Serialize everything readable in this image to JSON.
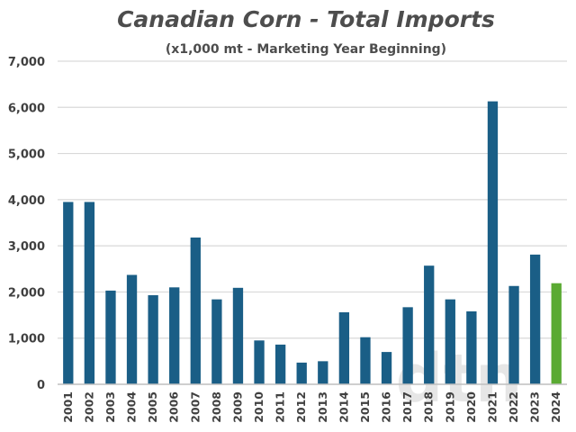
{
  "chart_data": {
    "type": "bar",
    "title": "Canadian Corn - Total Imports",
    "subtitle": "(x1,000 mt - Marketing Year Beginning)",
    "categories": [
      "2001",
      "2002",
      "2003",
      "2004",
      "2005",
      "2006",
      "2007",
      "2008",
      "2009",
      "2010",
      "2011",
      "2012",
      "2013",
      "2014",
      "2015",
      "2016",
      "2017",
      "2018",
      "2019",
      "2020",
      "2021",
      "2022",
      "2023",
      "2024"
    ],
    "values": [
      3950,
      3950,
      2030,
      2370,
      1930,
      2100,
      3180,
      1840,
      2090,
      950,
      860,
      470,
      500,
      1560,
      1020,
      700,
      1670,
      2570,
      1840,
      1580,
      6130,
      2130,
      2810,
      2190
    ],
    "ylim": [
      0,
      7000
    ],
    "yticks": [
      0,
      1000,
      2000,
      3000,
      4000,
      5000,
      6000,
      7000
    ],
    "ytick_labels": [
      "0",
      "1,000",
      "2,000",
      "3,000",
      "4,000",
      "5,000",
      "6,000",
      "7,000"
    ],
    "grid": true,
    "legend": "none",
    "colors": {
      "bar": "#1a5e86",
      "highlight": "#5aaa32",
      "highlight_category": "2024"
    }
  },
  "watermark": {
    "text": "dtn"
  }
}
